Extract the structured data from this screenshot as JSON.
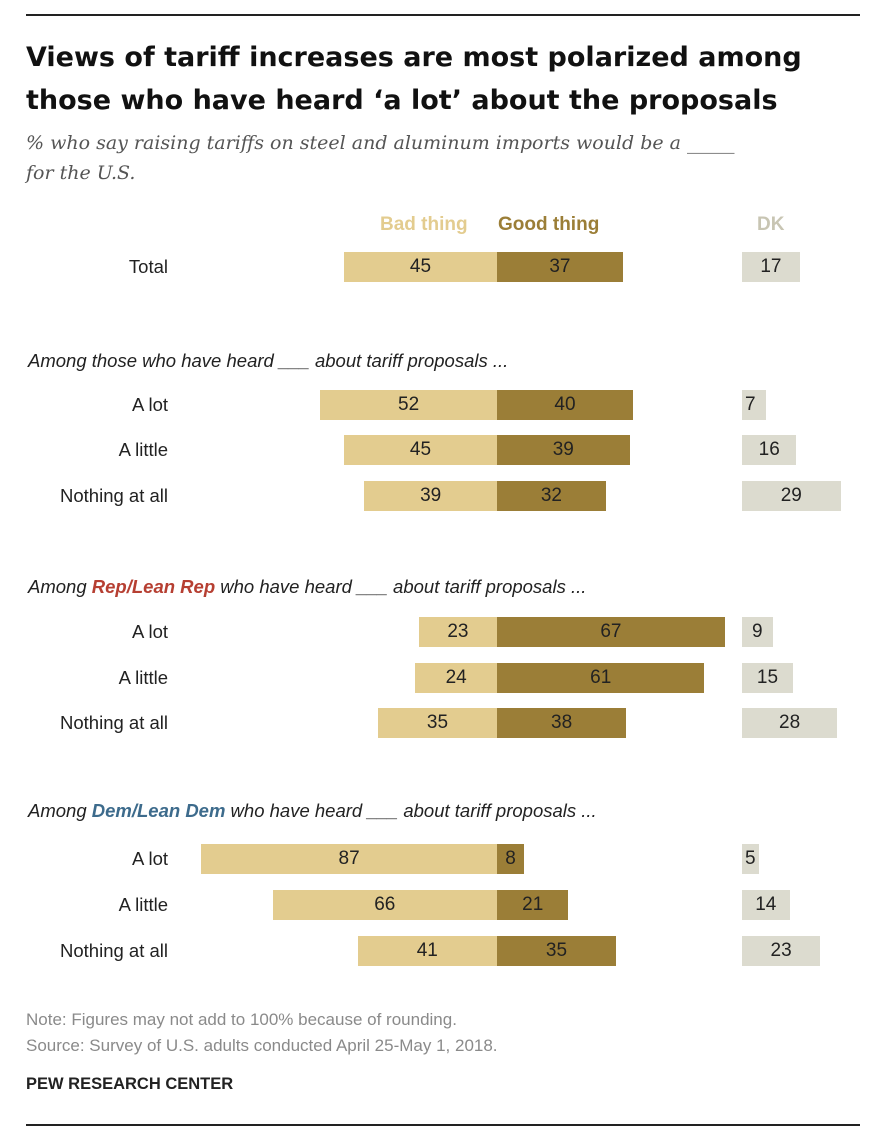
{
  "header": {
    "title_line1": "Views of tariff increases are most polarized among",
    "title_line2": "those who have heard ‘a lot’ about the proposals",
    "subtitle_line1": "% who say raising tariffs on steel and aluminum imports would be a _____",
    "subtitle_line2": "for the U.S."
  },
  "legend": {
    "bad": "Bad thing",
    "good": "Good thing",
    "dk": "DK"
  },
  "sections": {
    "heard": {
      "prefix": "Among those who have heard ___ about tariff proposals ..."
    },
    "rep": {
      "prefix": "Among ",
      "group": "Rep/Lean Rep",
      "suffix": " who have heard ___ about tariff proposals ..."
    },
    "dem": {
      "prefix": "Among ",
      "group": "Dem/Lean Dem",
      "suffix": " who have heard ___ about tariff proposals ..."
    }
  },
  "chart_data": {
    "type": "bar",
    "orientation": "diverging-horizontal",
    "series_names": [
      "Bad thing",
      "Good thing",
      "DK"
    ],
    "rows": [
      {
        "group": "total",
        "label": "Total",
        "bad": 45,
        "good": 37,
        "dk": 17
      },
      {
        "group": "heard",
        "label": "A lot",
        "bad": 52,
        "good": 40,
        "dk": 7
      },
      {
        "group": "heard",
        "label": "A little",
        "bad": 45,
        "good": 39,
        "dk": 16
      },
      {
        "group": "heard",
        "label": "Nothing at all",
        "bad": 39,
        "good": 32,
        "dk": 29
      },
      {
        "group": "rep",
        "label": "A lot",
        "bad": 23,
        "good": 67,
        "dk": 9
      },
      {
        "group": "rep",
        "label": "A little",
        "bad": 24,
        "good": 61,
        "dk": 15
      },
      {
        "group": "rep",
        "label": "Nothing at all",
        "bad": 35,
        "good": 38,
        "dk": 28
      },
      {
        "group": "dem",
        "label": "A lot",
        "bad": 87,
        "good": 8,
        "dk": 5
      },
      {
        "group": "dem",
        "label": "A little",
        "bad": 66,
        "good": 21,
        "dk": 14
      },
      {
        "group": "dem",
        "label": "Nothing at all",
        "bad": 41,
        "good": 35,
        "dk": 23
      }
    ],
    "colors": {
      "bad": "#e3cc8f",
      "good": "#9b7e37",
      "dk": "#dcdbcf",
      "rep": "#b63f32",
      "dem": "#3d6b8c"
    }
  },
  "footer": {
    "note": "Note: Figures may not add to 100% because of rounding.",
    "source": "Source: Survey of U.S. adults conducted April 25-May 1, 2018.",
    "brand": "PEW RESEARCH CENTER"
  }
}
